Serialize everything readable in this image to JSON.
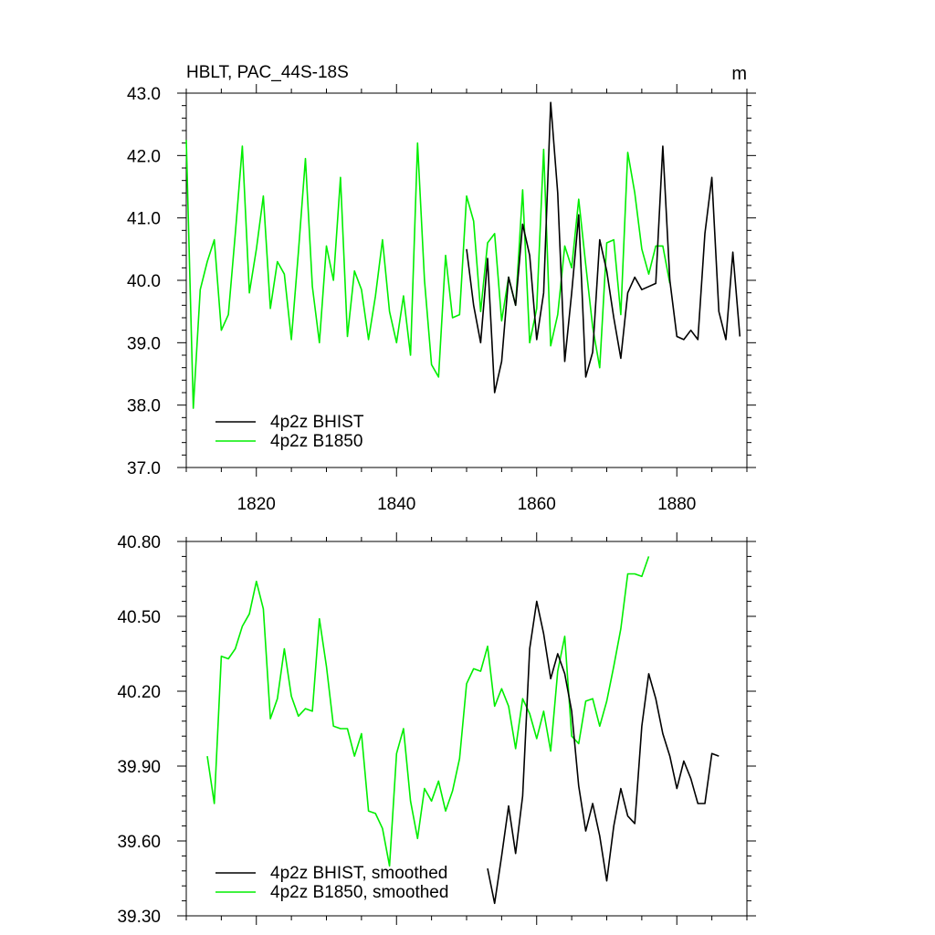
{
  "title": "HBLT, PAC_44S-18S",
  "units": "m",
  "colors": {
    "black": "#000000",
    "green": "#00ee00"
  },
  "chart_data": [
    {
      "type": "line",
      "title": "HBLT, PAC_44S-18S",
      "units": "m",
      "xlim": [
        1810,
        1890
      ],
      "ylim": [
        37.0,
        43.0
      ],
      "x_ticks": [
        1820,
        1840,
        1860,
        1880
      ],
      "y_ticks": [
        37.0,
        38.0,
        39.0,
        40.0,
        41.0,
        42.0,
        43.0
      ],
      "y_tick_labels": [
        "37.0",
        "38.0",
        "39.0",
        "40.0",
        "41.0",
        "42.0",
        "43.0"
      ],
      "grid": false,
      "legend_position": "bottom-left",
      "series": [
        {
          "name": "4p2z BHIST",
          "color": "#000000",
          "x": [
            1850,
            1851,
            1852,
            1853,
            1854,
            1855,
            1856,
            1857,
            1858,
            1859,
            1860,
            1861,
            1862,
            1863,
            1864,
            1865,
            1866,
            1867,
            1868,
            1869,
            1870,
            1871,
            1872,
            1873,
            1874,
            1875,
            1876,
            1877,
            1878,
            1879,
            1880,
            1881,
            1882,
            1883,
            1884,
            1885,
            1886,
            1887,
            1888,
            1889
          ],
          "y": [
            40.5,
            39.6,
            39.0,
            40.35,
            38.2,
            38.7,
            40.05,
            39.6,
            40.9,
            40.4,
            39.05,
            39.8,
            42.85,
            41.4,
            38.7,
            39.8,
            41.05,
            38.45,
            38.85,
            40.65,
            40.15,
            39.4,
            38.75,
            39.8,
            40.05,
            39.85,
            39.9,
            39.95,
            42.15,
            40.0,
            39.1,
            39.05,
            39.2,
            39.05,
            40.75,
            41.65,
            39.5,
            39.05,
            40.45,
            39.1
          ]
        },
        {
          "name": "4p2z B1850",
          "color": "#00ee00",
          "x": [
            1810,
            1811,
            1812,
            1813,
            1814,
            1815,
            1816,
            1817,
            1818,
            1819,
            1820,
            1821,
            1822,
            1823,
            1824,
            1825,
            1826,
            1827,
            1828,
            1829,
            1830,
            1831,
            1832,
            1833,
            1834,
            1835,
            1836,
            1837,
            1838,
            1839,
            1840,
            1841,
            1842,
            1843,
            1844,
            1845,
            1846,
            1847,
            1848,
            1849,
            1850,
            1851,
            1852,
            1853,
            1854,
            1855,
            1856,
            1857,
            1858,
            1859,
            1860,
            1861,
            1862,
            1863,
            1864,
            1865,
            1866,
            1867,
            1868,
            1869,
            1870,
            1871,
            1872,
            1873,
            1874,
            1875,
            1876,
            1877,
            1878,
            1879
          ],
          "y": [
            42.25,
            37.95,
            39.85,
            40.3,
            40.65,
            39.2,
            39.45,
            40.75,
            42.15,
            39.8,
            40.5,
            41.35,
            39.55,
            40.3,
            40.1,
            39.05,
            40.45,
            41.95,
            39.9,
            39.0,
            40.55,
            40.0,
            41.65,
            39.1,
            40.15,
            39.85,
            39.05,
            39.75,
            40.65,
            39.5,
            39.0,
            39.75,
            38.8,
            42.2,
            40.0,
            38.65,
            38.45,
            40.4,
            39.4,
            39.45,
            41.35,
            40.95,
            39.5,
            40.6,
            40.75,
            39.35,
            40.05,
            39.6,
            41.45,
            39.0,
            39.55,
            42.1,
            38.95,
            39.45,
            40.55,
            40.2,
            41.3,
            40.25,
            39.25,
            38.6,
            40.6,
            40.65,
            39.45,
            42.05,
            41.4,
            40.5,
            40.1,
            40.55,
            40.55,
            39.95
          ]
        }
      ]
    },
    {
      "type": "line",
      "xlim": [
        1810,
        1890
      ],
      "ylim": [
        39.3,
        40.8
      ],
      "x_ticks": [
        1820,
        1840,
        1860,
        1880
      ],
      "y_ticks": [
        39.3,
        39.6,
        39.9,
        40.2,
        40.5,
        40.8
      ],
      "y_tick_labels": [
        "39.30",
        "39.60",
        "39.90",
        "40.20",
        "40.50",
        "40.80"
      ],
      "grid": false,
      "legend_position": "bottom-left",
      "series": [
        {
          "name": "4p2z BHIST, smoothed",
          "color": "#000000",
          "x": [
            1853,
            1854,
            1855,
            1856,
            1857,
            1858,
            1859,
            1860,
            1861,
            1862,
            1863,
            1864,
            1865,
            1866,
            1867,
            1868,
            1869,
            1870,
            1871,
            1872,
            1873,
            1874,
            1875,
            1876,
            1877,
            1878,
            1879,
            1880,
            1881,
            1882,
            1883,
            1884,
            1885,
            1886
          ],
          "y": [
            39.49,
            39.35,
            39.54,
            39.74,
            39.55,
            39.78,
            40.37,
            40.56,
            40.43,
            40.25,
            40.35,
            40.27,
            40.12,
            39.82,
            39.64,
            39.75,
            39.62,
            39.44,
            39.66,
            39.81,
            39.7,
            39.67,
            40.06,
            40.27,
            40.17,
            40.03,
            39.94,
            39.81,
            39.92,
            39.85,
            39.75,
            39.75,
            39.95,
            39.94
          ]
        },
        {
          "name": "4p2z B1850, smoothed",
          "color": "#00ee00",
          "x": [
            1813,
            1814,
            1815,
            1816,
            1817,
            1818,
            1819,
            1820,
            1821,
            1822,
            1823,
            1824,
            1825,
            1826,
            1827,
            1828,
            1829,
            1830,
            1831,
            1832,
            1833,
            1834,
            1835,
            1836,
            1837,
            1838,
            1839,
            1840,
            1841,
            1842,
            1843,
            1844,
            1845,
            1846,
            1847,
            1848,
            1849,
            1850,
            1851,
            1852,
            1853,
            1854,
            1855,
            1856,
            1857,
            1858,
            1859,
            1860,
            1861,
            1862,
            1863,
            1864,
            1865,
            1866,
            1867,
            1868,
            1869,
            1870,
            1871,
            1872,
            1873,
            1874,
            1875,
            1876
          ],
          "y": [
            39.94,
            39.75,
            40.34,
            40.33,
            40.37,
            40.46,
            40.51,
            40.64,
            40.53,
            40.09,
            40.17,
            40.37,
            40.18,
            40.1,
            40.13,
            40.12,
            40.49,
            40.3,
            40.06,
            40.05,
            40.05,
            39.94,
            40.03,
            39.72,
            39.71,
            39.65,
            39.5,
            39.95,
            40.05,
            39.76,
            39.61,
            39.81,
            39.76,
            39.84,
            39.72,
            39.8,
            39.93,
            40.23,
            40.29,
            40.28,
            40.38,
            40.14,
            40.21,
            40.14,
            39.97,
            40.17,
            40.11,
            40.01,
            40.12,
            39.96,
            40.28,
            40.42,
            40.02,
            39.99,
            40.16,
            40.17,
            40.06,
            40.16,
            40.3,
            40.45,
            40.67,
            40.67,
            40.66,
            40.74
          ]
        }
      ]
    }
  ]
}
